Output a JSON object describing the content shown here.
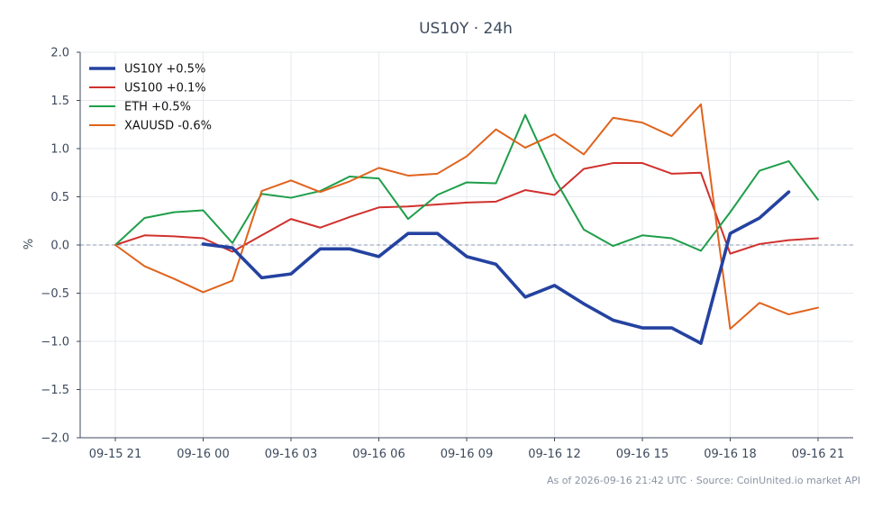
{
  "chart_data": {
    "type": "line",
    "title": "US10Y · 24h",
    "ylabel": "%",
    "xlabel": "",
    "ylim": [
      -2.0,
      2.0
    ],
    "yticks": [
      2.0,
      1.5,
      1.0,
      0.5,
      0.0,
      -0.5,
      -1.0,
      -1.5,
      -2.0
    ],
    "ytick_labels": [
      "2.0",
      "1.5",
      "1.0",
      "0.5",
      "0.0",
      "−0.5",
      "−1.0",
      "−1.5",
      "−2.0"
    ],
    "xlim": [
      -1.2,
      25.2
    ],
    "xticks": [
      0,
      3,
      6,
      9,
      12,
      15,
      18,
      21,
      24
    ],
    "xtick_labels": [
      "09-15 21",
      "09-16 00",
      "09-16 03",
      "09-16 06",
      "09-16 09",
      "09-16 12",
      "09-16 15",
      "09-16 18",
      "09-16 21"
    ],
    "x_hour_labels": [
      "09-15 21:00",
      "09-15 22:00",
      "09-15 23:00",
      "09-16 00:00",
      "09-16 01:00",
      "09-16 02:00",
      "09-16 03:00",
      "09-16 04:00",
      "09-16 05:00",
      "09-16 06:00",
      "09-16 07:00",
      "09-16 08:00",
      "09-16 09:00",
      "09-16 10:00",
      "09-16 11:00",
      "09-16 12:00",
      "09-16 13:00",
      "09-16 14:00",
      "09-16 15:00",
      "09-16 16:00",
      "09-16 17:00",
      "09-16 18:00",
      "09-16 19:00",
      "09-16 20:00",
      "09-16 21:00"
    ],
    "baseline": 0.0,
    "grid": true,
    "legend_position": "top-left",
    "series": [
      {
        "name": "US10Y +0.5%",
        "color": "#2442a0",
        "emphasis": true,
        "x": [
          3,
          4,
          5,
          6,
          7,
          8,
          9,
          10,
          11,
          12,
          13,
          14,
          15,
          16,
          17,
          18,
          19,
          20,
          21,
          22,
          23
        ],
        "values": [
          0.01,
          -0.03,
          -0.34,
          -0.3,
          -0.04,
          -0.04,
          -0.12,
          0.12,
          0.12,
          -0.12,
          -0.2,
          -0.54,
          -0.42,
          -0.61,
          -0.78,
          -0.86,
          -0.86,
          -1.02,
          0.12,
          0.28,
          0.55
        ]
      },
      {
        "name": "US100 +0.1%",
        "color": "#d0312d",
        "emphasis": false,
        "x": [
          0,
          1,
          2,
          3,
          4,
          5,
          6,
          7,
          8,
          9,
          10,
          11,
          12,
          13,
          14,
          15,
          16,
          17,
          18,
          19,
          20,
          21,
          22,
          23,
          24
        ],
        "values": [
          0.0,
          0.1,
          0.09,
          0.07,
          -0.07,
          0.1,
          0.27,
          0.18,
          0.29,
          0.39,
          0.4,
          0.42,
          0.44,
          0.45,
          0.57,
          0.52,
          0.79,
          0.85,
          0.85,
          0.74,
          0.75,
          -0.09,
          0.01,
          0.05,
          0.07
        ]
      },
      {
        "name": "ETH +0.5%",
        "color": "#1f9e4a",
        "emphasis": false,
        "x": [
          0,
          1,
          2,
          3,
          4,
          5,
          6,
          7,
          8,
          9,
          10,
          11,
          12,
          13,
          14,
          15,
          16,
          17,
          18,
          19,
          20,
          21,
          22,
          23,
          24
        ],
        "values": [
          0.0,
          0.28,
          0.34,
          0.36,
          0.02,
          0.53,
          0.49,
          0.56,
          0.71,
          0.69,
          0.27,
          0.52,
          0.65,
          0.64,
          1.35,
          0.69,
          0.16,
          -0.01,
          0.1,
          0.07,
          -0.06,
          0.34,
          0.77,
          0.87,
          0.47
        ]
      },
      {
        "name": "XAUUSD -0.6%",
        "color": "#e0631d",
        "emphasis": false,
        "x": [
          0,
          1,
          2,
          3,
          4,
          5,
          6,
          7,
          8,
          9,
          10,
          11,
          12,
          13,
          14,
          15,
          16,
          17,
          18,
          19,
          20,
          21,
          22,
          23,
          24
        ],
        "values": [
          0.0,
          -0.22,
          -0.35,
          -0.49,
          -0.37,
          0.56,
          0.67,
          0.55,
          0.66,
          0.8,
          0.72,
          0.74,
          0.92,
          1.2,
          1.01,
          1.15,
          0.94,
          1.32,
          1.27,
          1.13,
          1.46,
          -0.87,
          -0.6,
          -0.72,
          -0.65
        ]
      }
    ]
  },
  "footer": "As of 2026-09-16 21:42 UTC · Source: CoinUnited.io market API"
}
